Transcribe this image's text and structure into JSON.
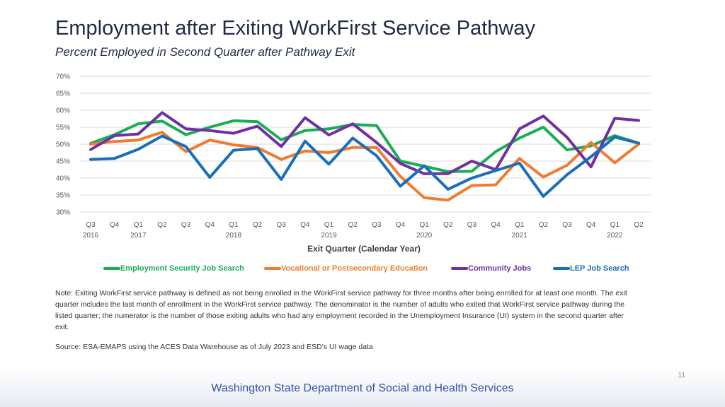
{
  "title": "Employment after Exiting WorkFirst Service Pathway",
  "subtitle": "Percent Employed in Second Quarter after Pathway Exit",
  "chart_data": {
    "type": "line",
    "title": "Employment after Exiting WorkFirst Service Pathway",
    "subtitle": "Percent Employed in Second Quarter after Pathway Exit",
    "xlabel": "Exit Quarter (Calendar Year)",
    "ylabel": "",
    "ylim": [
      30,
      70
    ],
    "yticks": [
      30,
      35,
      40,
      45,
      50,
      55,
      60,
      65,
      70
    ],
    "ytick_labels": [
      "30%",
      "35%",
      "40%",
      "45%",
      "50%",
      "55%",
      "60%",
      "65%",
      "70%"
    ],
    "categories": [
      "Q3",
      "Q4",
      "Q1",
      "Q2",
      "Q3",
      "Q4",
      "Q1",
      "Q2",
      "Q3",
      "Q4",
      "Q1",
      "Q2",
      "Q3",
      "Q4",
      "Q1",
      "Q2",
      "Q3",
      "Q4",
      "Q1",
      "Q2",
      "Q3",
      "Q4",
      "Q1",
      "Q2"
    ],
    "year_labels": [
      {
        "index": 0,
        "label": "2016"
      },
      {
        "index": 2,
        "label": "2017"
      },
      {
        "index": 6,
        "label": "2018"
      },
      {
        "index": 10,
        "label": "2019"
      },
      {
        "index": 14,
        "label": "2020"
      },
      {
        "index": 18,
        "label": "2021"
      },
      {
        "index": 22,
        "label": "2022"
      }
    ],
    "grid": true,
    "legend_position": "bottom",
    "series": [
      {
        "name": "Employment Security Job Search",
        "color": "#1aae54",
        "values": [
          50.2,
          52.8,
          56.0,
          56.8,
          52.8,
          55.0,
          56.9,
          56.6,
          51.3,
          54.0,
          54.5,
          55.8,
          55.5,
          45.0,
          43.5,
          41.9,
          42.0,
          47.8,
          51.8,
          55.0,
          48.3,
          49.5,
          52.5,
          50.3
        ]
      },
      {
        "name": "Vocational or Postsecondary Education",
        "color": "#ee7c32",
        "values": [
          50.0,
          50.8,
          51.2,
          53.5,
          47.8,
          51.2,
          49.8,
          49.0,
          45.5,
          48.0,
          47.5,
          49.0,
          49.0,
          40.5,
          34.2,
          33.5,
          37.8,
          38.0,
          45.8,
          40.3,
          43.8,
          50.5,
          44.5,
          50.0
        ]
      },
      {
        "name": "Community Jobs",
        "color": "#7030a0",
        "values": [
          48.4,
          52.5,
          53.0,
          59.3,
          54.5,
          54.0,
          53.2,
          55.3,
          49.3,
          57.8,
          52.7,
          56.0,
          50.5,
          44.3,
          41.3,
          41.3,
          45.0,
          42.5,
          54.5,
          58.3,
          52.0,
          43.3,
          57.6,
          57.0
        ]
      },
      {
        "name": "LEP Job Search",
        "color": "#1a6fb8",
        "values": [
          45.5,
          45.8,
          48.5,
          52.4,
          49.3,
          40.2,
          48.2,
          48.7,
          39.6,
          50.9,
          44.1,
          51.8,
          46.6,
          37.6,
          43.6,
          36.7,
          40.0,
          42.2,
          44.4,
          34.6,
          41.0,
          46.3,
          52.1,
          50.3
        ]
      }
    ]
  },
  "legend": [
    {
      "label": "Employment Security Job Search",
      "color": "#1aae54"
    },
    {
      "label": "Vocational or Postsecondary Education",
      "color": "#ee7c32"
    },
    {
      "label": "Community Jobs",
      "color": "#7030a0"
    },
    {
      "label": "LEP Job Search",
      "color": "#1a6fb8"
    }
  ],
  "note": "Note: Exiting WorkFirst service pathway is defined as not being enrolled in the WorkFirst service pathway for three months after being enrolled for at least one month. The exit quarter includes the last month of enrollment in the WorkFirst service pathway. The denominator is the number of adults who exited that WorkFirst service pathway during the listed quarter; the numerator is the number of those exiting adults who had any employment recorded in the Unemployment Insurance (UI) system in the second quarter after exit.",
  "source": "Source: ESA-EMAPS using the ACES Data Warehouse as of July 2023 and ESD’s UI wage data",
  "page_number": "11",
  "footer": "Washington State Department of Social and Health Services"
}
